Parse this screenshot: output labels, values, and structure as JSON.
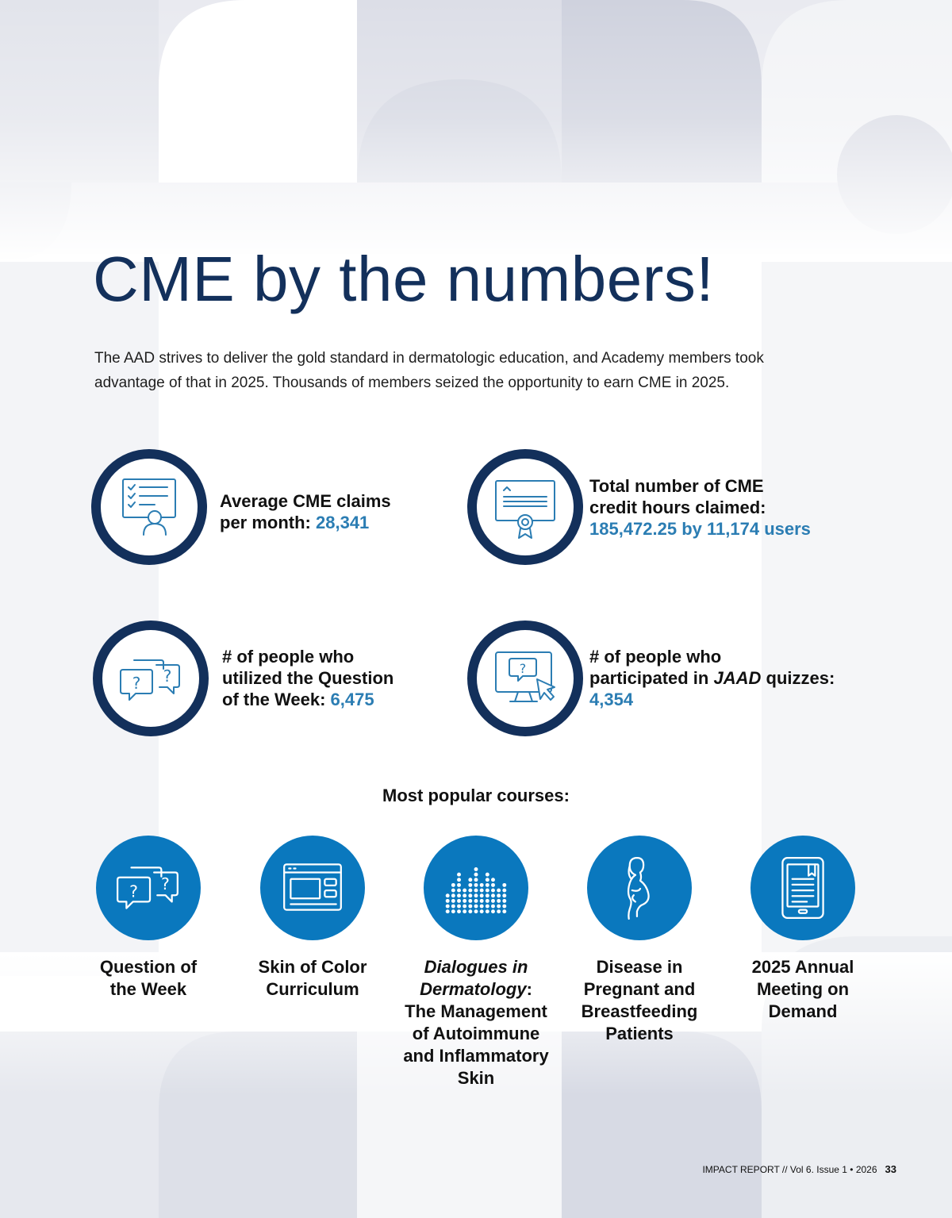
{
  "page": {
    "title": "CME by the numbers!",
    "intro_line1": "The AAD strives to deliver the gold standard in dermatologic education, and Academy members took",
    "intro_line2": "advantage of that in 2025. Thousands of members seized the opportunity to earn CME in 2025."
  },
  "stats": [
    {
      "icon": "checklist-person-icon",
      "line1": "Average CME claims",
      "line2_label": "per month: ",
      "value": "28,341"
    },
    {
      "icon": "certificate-icon",
      "line1": "Total number of CME",
      "line2": "credit hours claimed:",
      "value": "185,472.25 by 11,174 users"
    },
    {
      "icon": "chat-bubbles-question-icon",
      "line1": "# of people who",
      "line2": "utilized the Question",
      "line3_label": "of the Week: ",
      "value": "6,475"
    },
    {
      "icon": "monitor-question-cursor-icon",
      "line1": "# of people who",
      "line2_pre": "participated in ",
      "line2_ital": "JAAD",
      "line2_post": " quizzes:",
      "value": "4,354"
    }
  ],
  "courses_heading": "Most popular courses:",
  "courses": [
    {
      "icon": "chat-bubbles-question-icon",
      "line1": "Question of",
      "line2": "the Week"
    },
    {
      "icon": "browser-window-icon",
      "line1": "Skin of Color",
      "line2": "Curriculum"
    },
    {
      "icon": "dot-matrix-bars-icon",
      "ital1": "Dialogues in",
      "ital2": "Dermatology",
      "colon": ":",
      "line3": "The Management",
      "line4": "of Autoimmune",
      "line5": "and Inflammatory",
      "line6": "Skin"
    },
    {
      "icon": "pregnant-woman-icon",
      "line1": "Disease in",
      "line2": "Pregnant and",
      "line3": "Breastfeeding",
      "line4": "Patients"
    },
    {
      "icon": "tablet-book-icon",
      "line1": "2025 Annual",
      "line2": "Meeting on",
      "line3": "Demand"
    }
  ],
  "footer": {
    "text": "IMPACT REPORT // Vol 6. Issue 1 • 2026",
    "page_number": "33"
  },
  "colors": {
    "navy": "#13305b",
    "accent": "#2b7db3",
    "course_blue": "#0a78be"
  }
}
